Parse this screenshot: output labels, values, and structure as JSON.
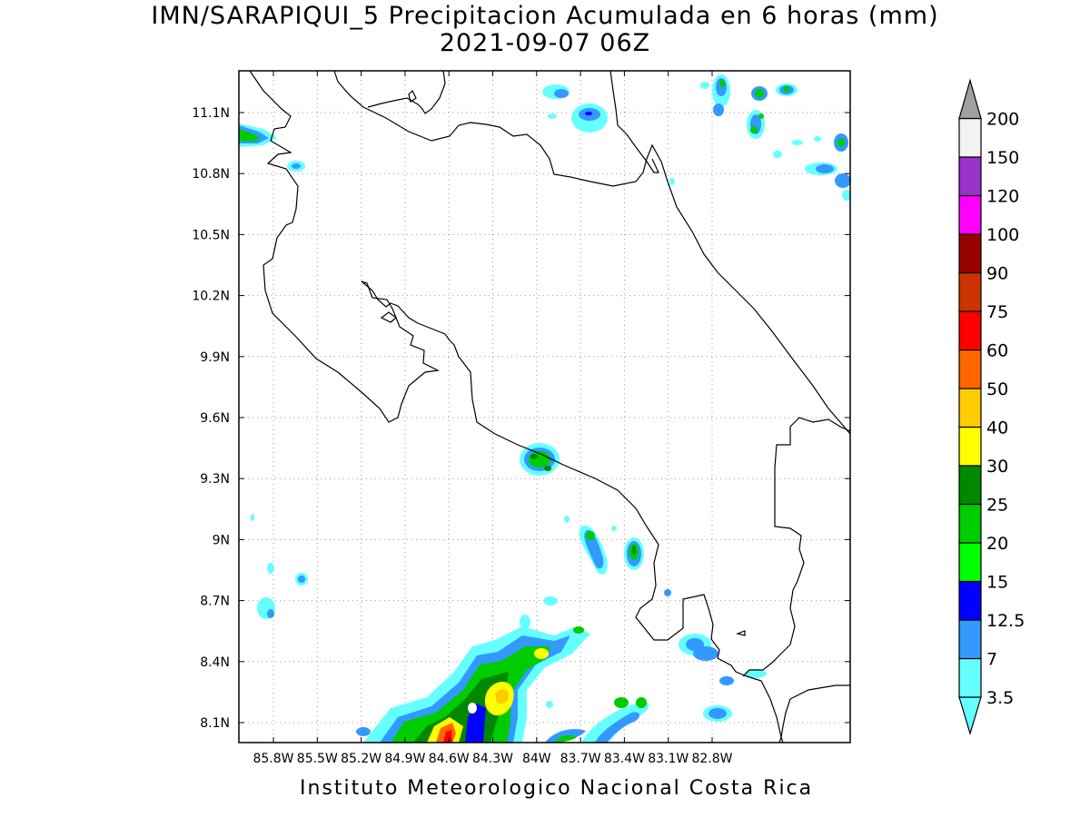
{
  "title": {
    "line1": "IMN/SARAPIQUI_5 Precipitacion Acumulada en 6 horas (mm)",
    "line2": "2021-09-07 06Z"
  },
  "footer": "Instituto Meteorologico Nacional Costa Rica",
  "lat_ticks": [
    "11.1N",
    "10.8N",
    "10.5N",
    "10.2N",
    "9.9N",
    "9.6N",
    "9.3N",
    "9N",
    "8.7N",
    "8.4N",
    "8.1N"
  ],
  "lon_ticks": [
    "85.8W",
    "85.5W",
    "85.2W",
    "84.9W",
    "84.6W",
    "84.3W",
    "84W",
    "83.7W",
    "83.4W",
    "83.1W",
    "82.8W"
  ],
  "colorbar": {
    "labels": [
      "3.5",
      "7",
      "12.5",
      "15",
      "20",
      "25",
      "30",
      "40",
      "50",
      "60",
      "75",
      "90",
      "100",
      "120",
      "150",
      "200"
    ],
    "colors": [
      "#66ffff",
      "#3399ff",
      "#0000ff",
      "#00ff00",
      "#00cc00",
      "#008800",
      "#ffff00",
      "#ffcc00",
      "#ff6600",
      "#ff0000",
      "#cc3300",
      "#990000",
      "#ff00ff",
      "#9933cc",
      "#f2f2f2",
      "#a0a0a0"
    ]
  }
}
